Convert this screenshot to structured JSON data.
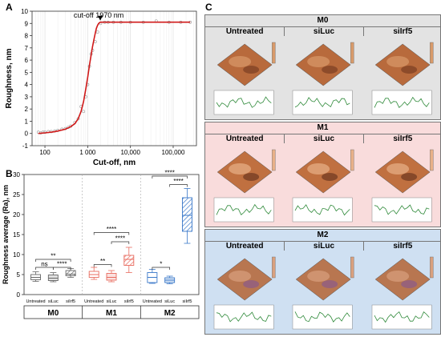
{
  "panels": {
    "a": "A",
    "b": "B",
    "c": "C"
  },
  "chart_data": [
    {
      "type": "line",
      "panel": "A",
      "xlabel": "Cut-off, nm",
      "ylabel": "Roughness, nm",
      "x_scale": "log",
      "xlim": [
        50,
        350000
      ],
      "ylim": [
        -1,
        10
      ],
      "x_ticks": [
        100,
        1000,
        10000,
        100000
      ],
      "x_tick_labels": [
        "100",
        "1 000",
        "10,000",
        "100,000"
      ],
      "y_ticks": [
        -1,
        0,
        1,
        2,
        3,
        4,
        5,
        6,
        7,
        8,
        9,
        10
      ],
      "annotation": "cut-off 1970 nm",
      "annotation_x": 1970,
      "grid": true,
      "series": [
        {
          "kind": "points",
          "x": [
            70,
            80,
            90,
            100,
            120,
            140,
            170,
            200,
            250,
            300,
            350,
            400,
            500,
            600,
            700,
            800,
            900,
            1000,
            1100,
            1200,
            1300,
            1500,
            1700,
            2000,
            2500,
            3000,
            4000,
            6000,
            10000,
            20000,
            40000,
            80000,
            150000,
            250000
          ],
          "y": [
            0.1,
            0.05,
            0.1,
            0.1,
            0.15,
            0.15,
            0.2,
            0.25,
            0.35,
            0.4,
            0.5,
            0.6,
            0.9,
            1.2,
            2.2,
            1.8,
            3.0,
            4.0,
            5.5,
            6.5,
            6.8,
            7.5,
            8.3,
            9.0,
            9.1,
            9.1,
            9.1,
            9.1,
            9.1,
            9.1,
            9.2,
            9.1,
            9.1,
            9.1
          ]
        },
        {
          "kind": "fit",
          "x": [
            70,
            100,
            150,
            200,
            300,
            400,
            500,
            600,
            700,
            800,
            900,
            1000,
            1100,
            1200,
            1300,
            1400,
            1500,
            1600,
            1700,
            1800,
            1970,
            250000
          ],
          "y": [
            0.0,
            0.05,
            0.12,
            0.2,
            0.35,
            0.55,
            0.8,
            1.2,
            1.8,
            2.6,
            3.6,
            4.6,
            5.6,
            6.4,
            7.1,
            7.7,
            8.2,
            8.6,
            8.85,
            9.0,
            9.1,
            9.1
          ]
        }
      ]
    },
    {
      "type": "box",
      "panel": "B",
      "ylabel": "Roughness average (Ra), nm",
      "ylim": [
        0,
        30
      ],
      "y_ticks": [
        0,
        5,
        10,
        15,
        20,
        25,
        30
      ],
      "groups": [
        "M0",
        "M1",
        "M2"
      ],
      "categories": [
        "Untreated",
        "siLuc",
        "siIrf5"
      ],
      "colors": {
        "M0": "#666666",
        "M1": "#e86a5e",
        "M2": "#3a78c9"
      },
      "boxes": [
        {
          "group": "M0",
          "category": "Untreated",
          "min": 3.3,
          "q1": 3.7,
          "median": 4.3,
          "q3": 5.0,
          "max": 5.7
        },
        {
          "group": "M0",
          "category": "siLuc",
          "min": 3.2,
          "q1": 3.5,
          "median": 4.1,
          "q3": 4.9,
          "max": 5.5
        },
        {
          "group": "M0",
          "category": "siIrf5",
          "min": 4.3,
          "q1": 4.7,
          "median": 5.1,
          "q3": 6.0,
          "max": 6.5
        },
        {
          "group": "M1",
          "category": "Untreated",
          "min": 3.8,
          "q1": 4.3,
          "median": 5.0,
          "q3": 5.8,
          "max": 6.8
        },
        {
          "group": "M1",
          "category": "siLuc",
          "min": 3.2,
          "q1": 3.6,
          "median": 4.3,
          "q3": 5.3,
          "max": 6.0
        },
        {
          "group": "M1",
          "category": "siIrf5",
          "min": 5.5,
          "q1": 7.3,
          "median": 8.8,
          "q3": 9.8,
          "max": 11.8
        },
        {
          "group": "M2",
          "category": "Untreated",
          "min": 2.8,
          "q1": 3.0,
          "median": 4.3,
          "q3": 5.5,
          "max": 6.3
        },
        {
          "group": "M2",
          "category": "siLuc",
          "min": 2.7,
          "q1": 3.0,
          "median": 3.6,
          "q3": 4.2,
          "max": 4.6
        },
        {
          "group": "M2",
          "category": "siIrf5",
          "min": 12.8,
          "q1": 15.8,
          "median": 19.8,
          "q3": 24.2,
          "max": 26.5
        }
      ],
      "significance": [
        {
          "label": "ns",
          "from": 0,
          "to": 1,
          "y": 6.8
        },
        {
          "label": "****",
          "from": 1,
          "to": 2,
          "y": 6.8
        },
        {
          "label": "**",
          "from": 0,
          "to": 2,
          "y": 8.8
        },
        {
          "label": "**",
          "from": 3,
          "to": 4,
          "y": 7.5
        },
        {
          "label": "****",
          "from": 4,
          "to": 5,
          "y": 13.2
        },
        {
          "label": "****",
          "from": 3,
          "to": 5,
          "y": 15.5
        },
        {
          "label": "*",
          "from": 6,
          "to": 7,
          "y": 6.8
        },
        {
          "label": "****",
          "from": 7,
          "to": 8,
          "y": 27.5
        },
        {
          "label": "****",
          "from": 6,
          "to": 8,
          "y": 29.6
        }
      ]
    }
  ],
  "panel_c": {
    "columns": [
      "Untreated",
      "siLuc",
      "siIrf5"
    ],
    "groups": [
      {
        "name": "M0",
        "bg": "#e3e3e3"
      },
      {
        "name": "M1",
        "bg": "#f9dcdc"
      },
      {
        "name": "M2",
        "bg": "#cfe0f2"
      }
    ]
  }
}
